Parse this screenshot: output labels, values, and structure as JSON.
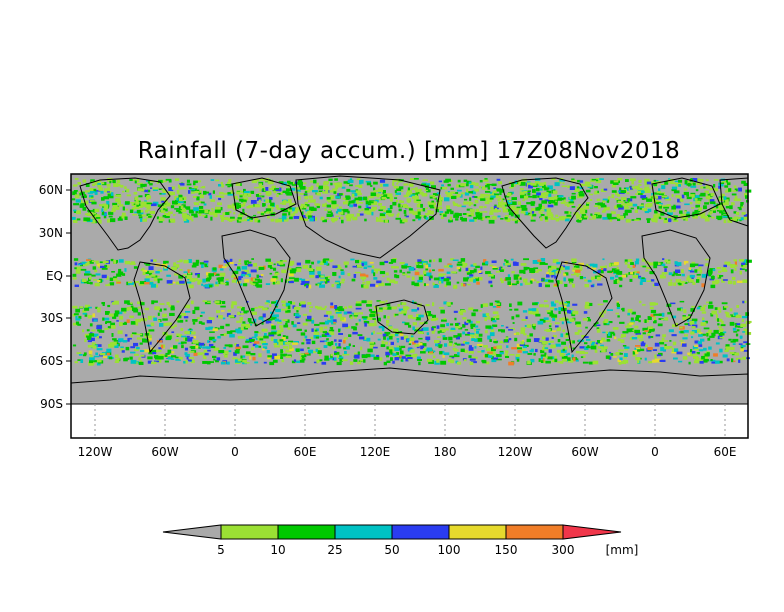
{
  "title": "Rainfall (7-day accum.) [mm] 17Z08Nov2018",
  "y_tick_labels": [
    "60N",
    "30N",
    "EQ",
    "30S",
    "60S",
    "90S"
  ],
  "x_tick_labels": [
    "120W",
    "60W",
    "0",
    "60E",
    "120E",
    "180",
    "120W",
    "60W",
    "0",
    "60E"
  ],
  "colorbar": {
    "tick_labels": [
      "5",
      "10",
      "25",
      "50",
      "100",
      "150",
      "300"
    ],
    "unit_label": "[mm]",
    "under_color": "#a9a9a9",
    "bin_colors": [
      "#9be034",
      "#00c800",
      "#00c2c4",
      "#2a3cf0",
      "#e6da2d",
      "#f07d28"
    ],
    "over_color": "#f0364a"
  },
  "colors": {
    "land_no_rain": "#aaaaaa",
    "ocean": "#aaaaaa",
    "no_data": "#ffffff",
    "coastline": "#000000"
  }
}
